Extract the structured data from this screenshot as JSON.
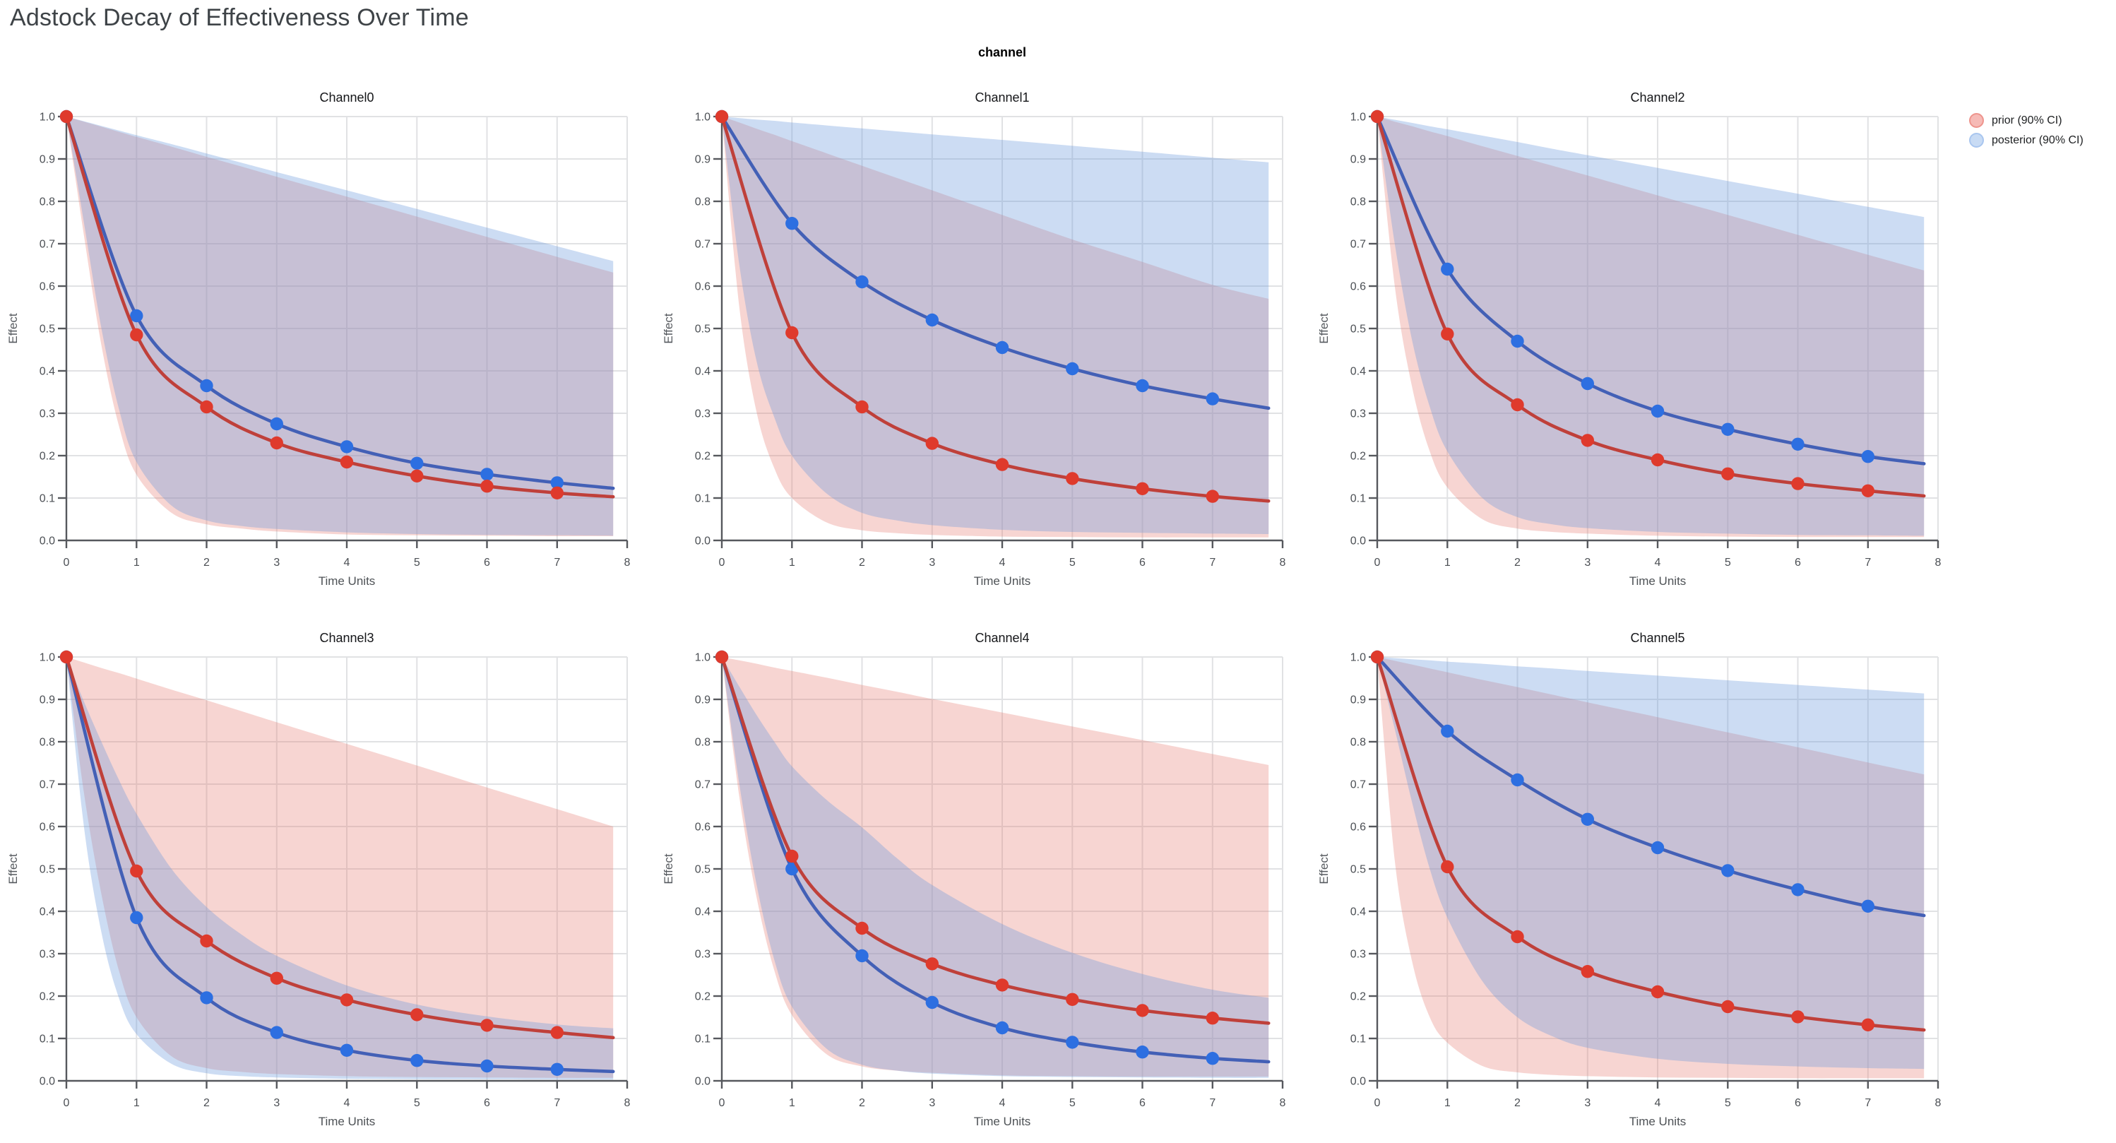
{
  "page_title": "Adstock Decay of Effectiveness Over Time",
  "suptitle": "channel",
  "legend": {
    "items": [
      {
        "label": "prior (90% CI)",
        "fill": "#f6bab6",
        "stroke": "#ee948d"
      },
      {
        "label": "posterior (90% CI)",
        "fill": "#c8dbf4",
        "stroke": "#a9c6ef"
      }
    ]
  },
  "colors": {
    "prior_line": "#bf403a",
    "prior_marker": "#df3a2c",
    "posterior_line": "#4360b6",
    "posterior_marker": "#2d6fe1",
    "prior_band": "rgba(230,124,115,0.32)",
    "posterior_band": "rgba(106,151,219,0.34)",
    "grid": "#e1e2e4",
    "spine": "#56585d",
    "tick_label": "#4b4f54",
    "axis_label": "#4e5256"
  },
  "chart_data": {
    "type": "line",
    "title": "Adstock Decay of Effectiveness Over Time",
    "suptitle": "channel",
    "legend_entries": [
      "prior (90% CI)",
      "posterior (90% CI)"
    ],
    "legend_position": "top-right",
    "axes": {
      "xlabel": "Time Units",
      "ylabel": "Effect",
      "xlim": [
        0,
        8
      ],
      "ylim": [
        0.0,
        1.0
      ],
      "xticks": [
        0,
        1,
        2,
        3,
        4,
        5,
        6,
        7,
        8
      ],
      "yticks": [
        0.0,
        0.1,
        0.2,
        0.3,
        0.4,
        0.5,
        0.6,
        0.7,
        0.8,
        0.9,
        1.0
      ],
      "grid": true
    },
    "x_markers": [
      0,
      1,
      2,
      3,
      4,
      5,
      6,
      7
    ],
    "x_line": [
      0,
      1,
      2,
      3,
      4,
      5,
      6,
      7,
      7.8
    ],
    "x_band": [
      0,
      0.25,
      0.5,
      0.75,
      1,
      1.5,
      2,
      2.5,
      3,
      4,
      5,
      6,
      7,
      7.8
    ],
    "channels": [
      {
        "title": "Channel0",
        "prior": {
          "line": [
            1.0,
            0.485,
            0.315,
            0.23,
            0.185,
            0.152,
            0.128,
            0.112,
            0.103
          ],
          "band_upper": [
            1.0,
            0.988,
            0.976,
            0.964,
            0.952,
            0.929,
            0.905,
            0.882,
            0.858,
            0.811,
            0.764,
            0.716,
            0.669,
            0.632
          ],
          "band_lower": [
            1.0,
            0.72,
            0.46,
            0.27,
            0.155,
            0.065,
            0.038,
            0.028,
            0.021,
            0.014,
            0.012,
            0.011,
            0.01,
            0.01
          ]
        },
        "posterior": {
          "line": [
            1.0,
            0.53,
            0.365,
            0.275,
            0.221,
            0.182,
            0.156,
            0.136,
            0.123
          ],
          "band_upper": [
            1.0,
            0.989,
            0.978,
            0.967,
            0.956,
            0.935,
            0.913,
            0.891,
            0.869,
            0.826,
            0.782,
            0.738,
            0.694,
            0.659
          ],
          "band_lower": [
            1.0,
            0.75,
            0.5,
            0.31,
            0.185,
            0.082,
            0.047,
            0.034,
            0.027,
            0.019,
            0.015,
            0.013,
            0.012,
            0.011
          ]
        }
      },
      {
        "title": "Channel1",
        "prior": {
          "line": [
            1.0,
            0.49,
            0.315,
            0.229,
            0.179,
            0.146,
            0.122,
            0.104,
            0.093
          ],
          "band_upper": [
            1.0,
            0.986,
            0.971,
            0.957,
            0.942,
            0.913,
            0.884,
            0.855,
            0.826,
            0.768,
            0.71,
            0.657,
            0.603,
            0.57
          ],
          "band_lower": [
            1.0,
            0.55,
            0.3,
            0.17,
            0.1,
            0.042,
            0.024,
            0.017,
            0.013,
            0.009,
            0.008,
            0.007,
            0.007,
            0.007
          ]
        },
        "posterior": {
          "line": [
            1.0,
            0.748,
            0.61,
            0.52,
            0.455,
            0.405,
            0.365,
            0.334,
            0.312
          ],
          "band_upper": [
            1.0,
            0.9965,
            0.993,
            0.99,
            0.986,
            0.979,
            0.972,
            0.965,
            0.958,
            0.945,
            0.931,
            0.917,
            0.903,
            0.892
          ],
          "band_lower": [
            1.0,
            0.65,
            0.42,
            0.29,
            0.2,
            0.11,
            0.065,
            0.047,
            0.036,
            0.025,
            0.02,
            0.018,
            0.016,
            0.015
          ]
        }
      },
      {
        "title": "Channel2",
        "prior": {
          "line": [
            1.0,
            0.487,
            0.32,
            0.236,
            0.19,
            0.157,
            0.134,
            0.117,
            0.105
          ],
          "band_upper": [
            1.0,
            0.988,
            0.977,
            0.965,
            0.954,
            0.93,
            0.907,
            0.884,
            0.861,
            0.814,
            0.768,
            0.721,
            0.674,
            0.637
          ],
          "band_lower": [
            1.0,
            0.6,
            0.36,
            0.21,
            0.125,
            0.05,
            0.028,
            0.02,
            0.016,
            0.011,
            0.009,
            0.008,
            0.008,
            0.008
          ]
        },
        "posterior": {
          "line": [
            1.0,
            0.64,
            0.47,
            0.37,
            0.305,
            0.262,
            0.227,
            0.198,
            0.181
          ],
          "band_upper": [
            1.0,
            0.9925,
            0.985,
            0.977,
            0.97,
            0.955,
            0.94,
            0.924,
            0.909,
            0.879,
            0.848,
            0.818,
            0.787,
            0.763
          ],
          "band_lower": [
            1.0,
            0.7,
            0.47,
            0.315,
            0.21,
            0.1,
            0.055,
            0.038,
            0.029,
            0.02,
            0.016,
            0.013,
            0.012,
            0.011
          ]
        }
      },
      {
        "title": "Channel3",
        "prior": {
          "line": [
            1.0,
            0.495,
            0.33,
            0.242,
            0.191,
            0.156,
            0.131,
            0.114,
            0.102
          ],
          "band_upper": [
            1.0,
            0.987,
            0.974,
            0.962,
            0.949,
            0.923,
            0.898,
            0.872,
            0.846,
            0.795,
            0.744,
            0.692,
            0.641,
            0.6
          ],
          "band_lower": [
            1.0,
            0.68,
            0.44,
            0.26,
            0.15,
            0.058,
            0.03,
            0.021,
            0.016,
            0.011,
            0.009,
            0.008,
            0.007,
            0.007
          ]
        },
        "posterior": {
          "line": [
            1.0,
            0.385,
            0.196,
            0.114,
            0.072,
            0.048,
            0.035,
            0.027,
            0.022
          ],
          "band_upper": [
            1.0,
            0.895,
            0.8,
            0.71,
            0.63,
            0.5,
            0.41,
            0.345,
            0.295,
            0.225,
            0.18,
            0.152,
            0.133,
            0.124
          ],
          "band_lower": [
            1.0,
            0.6,
            0.35,
            0.195,
            0.11,
            0.04,
            0.018,
            0.011,
            0.008,
            0.005,
            0.004,
            0.0035,
            0.003,
            0.003
          ]
        }
      },
      {
        "title": "Channel4",
        "prior": {
          "line": [
            1.0,
            0.53,
            0.36,
            0.276,
            0.226,
            0.192,
            0.166,
            0.148,
            0.136
          ],
          "band_upper": [
            1.0,
            0.992,
            0.984,
            0.975,
            0.967,
            0.951,
            0.934,
            0.918,
            0.901,
            0.869,
            0.836,
            0.804,
            0.771,
            0.745
          ],
          "band_lower": [
            1.0,
            0.67,
            0.43,
            0.26,
            0.155,
            0.062,
            0.034,
            0.024,
            0.019,
            0.013,
            0.011,
            0.01,
            0.01,
            0.01
          ]
        },
        "posterior": {
          "line": [
            1.0,
            0.5,
            0.295,
            0.185,
            0.125,
            0.091,
            0.068,
            0.053,
            0.045
          ],
          "band_upper": [
            1.0,
            0.93,
            0.862,
            0.8,
            0.742,
            0.662,
            0.598,
            0.525,
            0.462,
            0.37,
            0.302,
            0.252,
            0.215,
            0.196
          ],
          "band_lower": [
            1.0,
            0.7,
            0.46,
            0.285,
            0.175,
            0.075,
            0.038,
            0.024,
            0.017,
            0.011,
            0.009,
            0.008,
            0.007,
            0.007
          ]
        }
      },
      {
        "title": "Channel5",
        "prior": {
          "line": [
            1.0,
            0.505,
            0.34,
            0.258,
            0.21,
            0.175,
            0.151,
            0.132,
            0.12
          ],
          "band_upper": [
            1.0,
            0.991,
            0.982,
            0.973,
            0.964,
            0.946,
            0.929,
            0.911,
            0.893,
            0.858,
            0.822,
            0.787,
            0.751,
            0.723
          ],
          "band_lower": [
            1.0,
            0.52,
            0.28,
            0.15,
            0.09,
            0.035,
            0.02,
            0.014,
            0.011,
            0.008,
            0.007,
            0.006,
            0.006,
            0.006
          ]
        },
        "posterior": {
          "line": [
            1.0,
            0.825,
            0.71,
            0.617,
            0.55,
            0.496,
            0.451,
            0.412,
            0.39
          ],
          "band_upper": [
            1.0,
            0.9973,
            0.9947,
            0.992,
            0.989,
            0.984,
            0.978,
            0.973,
            0.967,
            0.956,
            0.945,
            0.934,
            0.923,
            0.914
          ],
          "band_lower": [
            1.0,
            0.83,
            0.655,
            0.5,
            0.385,
            0.235,
            0.15,
            0.105,
            0.078,
            0.052,
            0.04,
            0.034,
            0.03,
            0.028
          ]
        }
      }
    ]
  }
}
